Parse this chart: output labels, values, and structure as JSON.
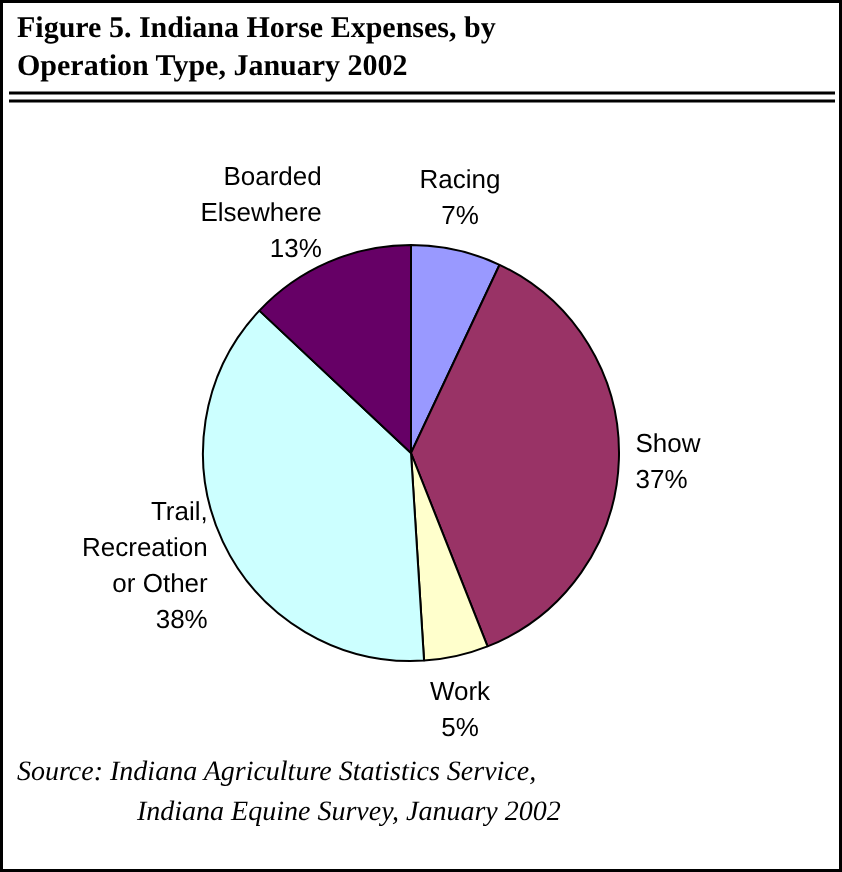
{
  "chart_data": {
    "type": "pie",
    "title": "Figure 5. Indiana Horse Expenses, by Operation Type, January 2002",
    "categories": [
      "Racing",
      "Show",
      "Work",
      "Trail,\nRecreation\nor Other",
      "Boarded\nElsewhere"
    ],
    "values": [
      7,
      37,
      5,
      38,
      13
    ],
    "value_labels": [
      "7%",
      "37%",
      "5%",
      "38%",
      "13%"
    ],
    "colors": [
      "#9999ff",
      "#993366",
      "#ffffcc",
      "#ccffff",
      "#660066"
    ],
    "annotations": [
      "Source: Indiana Agriculture Statistics Service,\nIndiana Equine Survey, January 2002"
    ]
  }
}
